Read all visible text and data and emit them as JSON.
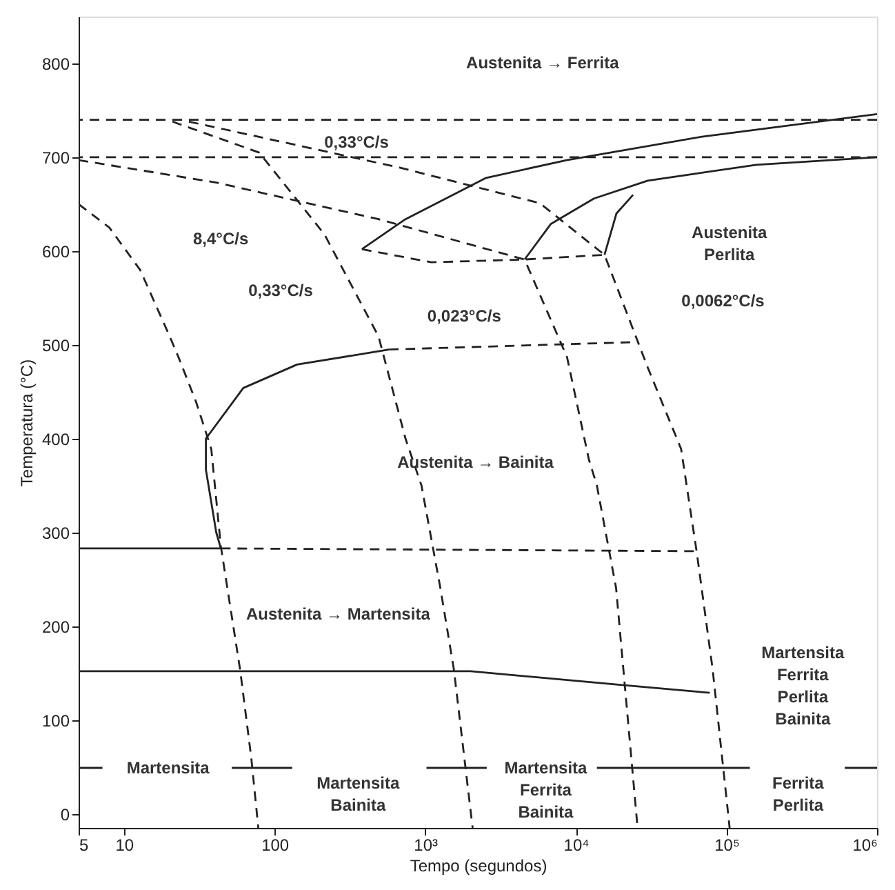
{
  "chart_data": {
    "type": "line",
    "xlabel": "Tempo (segundos)",
    "ylabel": "Temperatura (°C)",
    "log": "x",
    "grid": false,
    "marker": "none",
    "xlim": [
      5,
      1000000
    ],
    "ylim": [
      -15,
      850
    ],
    "xticks": [
      5,
      10,
      100,
      {
        "value": 1000,
        "label": "10³"
      },
      {
        "value": 10000,
        "label": "10⁴"
      },
      {
        "value": 100000,
        "label": "10⁵"
      },
      {
        "value": 1000000,
        "label": "10⁶"
      }
    ],
    "yticks": [
      0,
      100,
      200,
      300,
      400,
      500,
      600,
      700,
      800
    ],
    "ref_lines": [
      {
        "axis": "y",
        "value": 740,
        "color": "#222222",
        "line_style": "dashed"
      },
      {
        "axis": "y",
        "value": 700,
        "color": "#222222",
        "line_style": "dashed"
      }
    ],
    "series": [
      {
        "color": "#222222",
        "line_style": "dashed",
        "x": [
          5,
          8,
          12.8,
          20,
          23,
          30,
          38,
          44,
          59,
          70,
          78
        ],
        "values": [
          650,
          625,
          580,
          510,
          487,
          440,
          389,
          285,
          154,
          60,
          -15
        ]
      },
      {
        "color": "#222222",
        "line_style": "dashed",
        "x": [
          21,
          79,
          214,
          490,
          740,
          945,
          1260,
          1550,
          2065
        ],
        "values": [
          738,
          705,
          618,
          509,
          400,
          350,
          241,
          154,
          -15
        ]
      },
      {
        "color": "#222222",
        "line_style": "dashed",
        "x": [
          5,
          41,
          490,
          4570,
          8740,
          12200,
          13800,
          18500,
          25700
        ],
        "values": [
          697,
          673,
          634,
          591,
          487,
          378,
          350,
          241,
          -15
        ]
      },
      {
        "color": "#222222",
        "line_style": "dashed",
        "x": [
          27,
          676,
          5770,
          15500,
          30000,
          50000,
          63500,
          81000,
          105000
        ],
        "values": [
          738,
          689,
          651,
          596,
          476,
          389,
          279,
          154,
          -15
        ]
      },
      {
        "color": "#222222",
        "line_style": "solid",
        "x": [
          380,
          740,
          2540,
          8700,
          69000,
          1000000
        ],
        "values": [
          602,
          634,
          678,
          697,
          722,
          746
        ]
      },
      {
        "color": "#222222",
        "line_style": "solid",
        "x": [
          4570,
          6840,
          13200,
          30000,
          158000,
          1000000
        ],
        "values": [
          591,
          629,
          656,
          675,
          692,
          700
        ]
      },
      {
        "color": "#222222",
        "line_style": "dashed",
        "x": [
          380,
          1100,
          4570,
          15500
        ],
        "values": [
          602,
          588,
          591,
          596
        ]
      },
      {
        "color": "#222222",
        "line_style": "solid",
        "x": [
          15500,
          18600,
          24000
        ],
        "values": [
          596,
          640,
          660
        ]
      },
      {
        "color": "#222222",
        "line_style": "solid",
        "x": [
          5,
          44,
          41,
          35,
          35,
          62,
          141,
          575
        ],
        "values": [
          283,
          283,
          300,
          367,
          400,
          454,
          479,
          495
        ]
      },
      {
        "color": "#222222",
        "line_style": "dashed",
        "x": [
          575,
          25700
        ],
        "values": [
          495,
          503
        ]
      },
      {
        "color": "#222222",
        "line_style": "dashed",
        "x": [
          44,
          63000
        ],
        "values": [
          283,
          280
        ]
      },
      {
        "color": "#222222",
        "line_style": "solid",
        "x": [
          5,
          2000,
          21500,
          77500
        ],
        "values": [
          152,
          152,
          137,
          129
        ]
      },
      {
        "color": "#222222",
        "line_style": "solid",
        "x": [
          5,
          7.2,
          30,
          52,
          131,
          400,
          1020,
          2560,
          5000,
          13800,
          143000,
          300000,
          610000,
          1000000
        ],
        "values": [
          49,
          49,
          null,
          49,
          49,
          null,
          49,
          49,
          null,
          49,
          49,
          null,
          49,
          49
        ]
      }
    ],
    "annotations": [
      "Austenita → Ferrita",
      "Austenita\nPerlita",
      "8,4°C/s",
      "0,33°C/s",
      "0,33°C/s",
      "0,023°C/s",
      "0,0062°C/s",
      "Austenita → Bainita",
      "Austenita → Martensita",
      "Martensita\nFerrita\nPerlita\nBainita",
      "Martensita",
      "Martensita\nBainita",
      "Martensita\nFerrita\nBainita",
      "Ferrita\nPerlita"
    ]
  }
}
